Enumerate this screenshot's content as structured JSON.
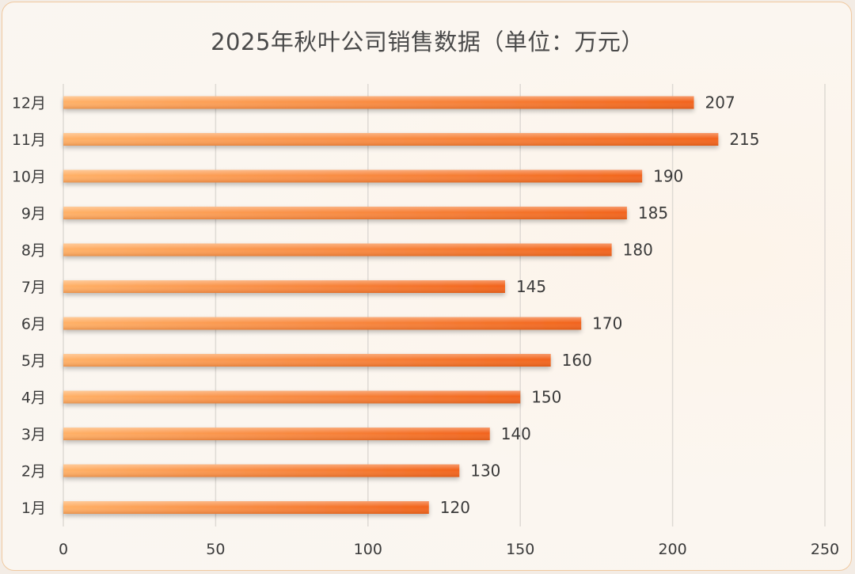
{
  "chart_data": {
    "type": "bar",
    "orientation": "horizontal",
    "title": "2025年秋叶公司销售数据（单位：万元）",
    "xlabel": "",
    "ylabel": "",
    "categories": [
      "1月",
      "2月",
      "3月",
      "4月",
      "5月",
      "6月",
      "7月",
      "8月",
      "9月",
      "10月",
      "11月",
      "12月"
    ],
    "values": [
      120,
      130,
      140,
      150,
      160,
      170,
      145,
      180,
      185,
      190,
      215,
      207
    ],
    "xlim": [
      0,
      250
    ],
    "xticks": [
      "0",
      "50",
      "100",
      "150",
      "200",
      "250"
    ],
    "grid": true,
    "colors": {
      "bar_light": "#ffa652",
      "bar_dark": "#f06a16",
      "text": "#3a3a3a",
      "grid": "#dedad4"
    }
  }
}
